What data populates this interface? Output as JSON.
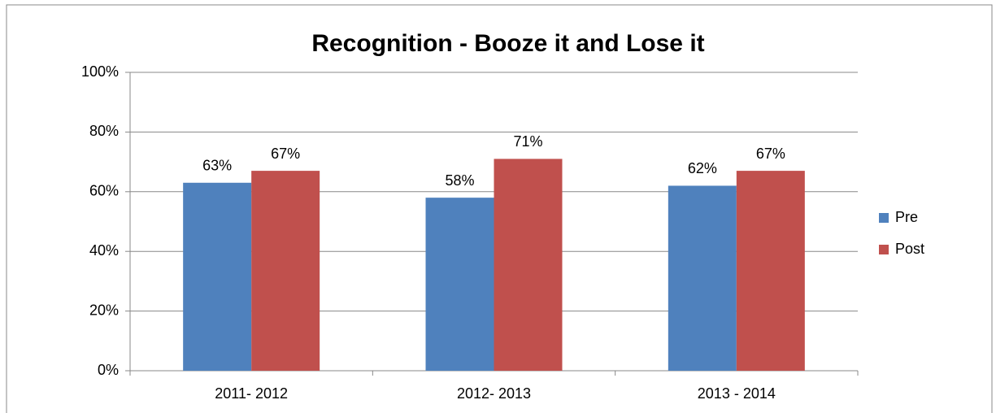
{
  "chart_data": {
    "type": "bar",
    "title": "Recognition - Booze it and Lose it",
    "categories": [
      "2011- 2012",
      "2012- 2013",
      "2013 - 2014"
    ],
    "series": [
      {
        "name": "Pre",
        "color": "#4f81bd",
        "values": [
          63,
          58,
          62
        ],
        "value_labels": [
          "63%",
          "58%",
          "62%"
        ]
      },
      {
        "name": "Post",
        "color": "#c0504d",
        "values": [
          67,
          71,
          67
        ],
        "value_labels": [
          "67%",
          "71%",
          "67%"
        ]
      }
    ],
    "ylim": [
      0,
      100
    ],
    "yticks": [
      {
        "value": 0,
        "label": "0%"
      },
      {
        "value": 20,
        "label": "20%"
      },
      {
        "value": 40,
        "label": "40%"
      },
      {
        "value": 60,
        "label": "60%"
      },
      {
        "value": 80,
        "label": "80%"
      },
      {
        "value": 100,
        "label": "100%"
      }
    ],
    "grid": true,
    "legend": "right"
  }
}
